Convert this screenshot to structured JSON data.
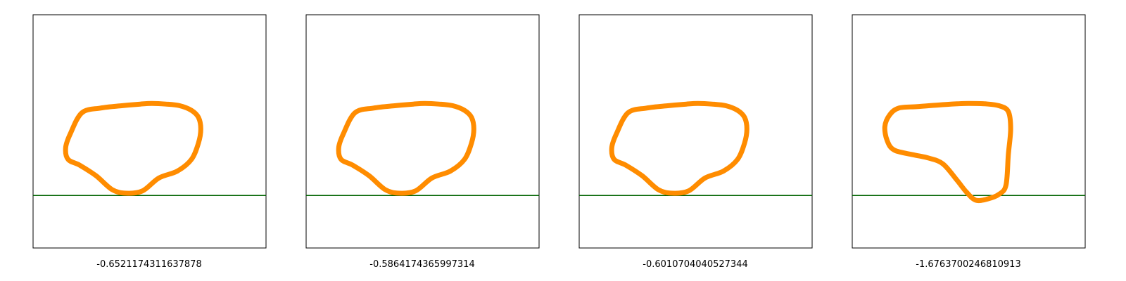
{
  "colors": {
    "shape": "#ff8c00",
    "ground_line": "#006400",
    "frame": "#000000",
    "background": "#ffffff"
  },
  "chart_data": [
    {
      "type": "line",
      "caption": "-0.6521174311637878",
      "grid": false,
      "xlim": [
        0,
        1
      ],
      "ylim": [
        0,
        1
      ],
      "ground_y": 0.225,
      "series": [
        {
          "x": [
            0.51,
            0.57,
            0.63,
            0.68,
            0.71,
            0.72,
            0.71,
            0.68,
            0.62,
            0.54,
            0.47,
            0.4,
            0.34,
            0.27,
            0.2,
            0.15,
            0.14,
            0.16,
            0.21,
            0.29,
            0.38,
            0.46,
            0.51
          ],
          "y": [
            0.62,
            0.617,
            0.61,
            0.59,
            0.56,
            0.51,
            0.45,
            0.38,
            0.33,
            0.3,
            0.245,
            0.235,
            0.25,
            0.31,
            0.355,
            0.38,
            0.43,
            0.49,
            0.58,
            0.6,
            0.61,
            0.617,
            0.62
          ]
        }
      ]
    },
    {
      "type": "line",
      "caption": "-0.5864174365997314",
      "grid": false,
      "xlim": [
        0,
        1
      ],
      "ylim": [
        0,
        1
      ],
      "ground_y": 0.225,
      "series": [
        {
          "x": [
            0.51,
            0.57,
            0.63,
            0.68,
            0.71,
            0.72,
            0.71,
            0.68,
            0.62,
            0.54,
            0.47,
            0.4,
            0.34,
            0.27,
            0.2,
            0.15,
            0.14,
            0.16,
            0.21,
            0.29,
            0.38,
            0.46,
            0.51
          ],
          "y": [
            0.62,
            0.617,
            0.61,
            0.59,
            0.56,
            0.51,
            0.45,
            0.38,
            0.33,
            0.3,
            0.245,
            0.235,
            0.25,
            0.31,
            0.355,
            0.38,
            0.43,
            0.49,
            0.58,
            0.6,
            0.61,
            0.617,
            0.62
          ]
        }
      ]
    },
    {
      "type": "line",
      "caption": "-0.6010704040527344",
      "grid": false,
      "xlim": [
        0,
        1
      ],
      "ylim": [
        0,
        1
      ],
      "ground_y": 0.225,
      "series": [
        {
          "x": [
            0.51,
            0.57,
            0.63,
            0.68,
            0.71,
            0.72,
            0.71,
            0.68,
            0.62,
            0.54,
            0.47,
            0.4,
            0.34,
            0.27,
            0.2,
            0.15,
            0.14,
            0.16,
            0.21,
            0.29,
            0.38,
            0.46,
            0.51
          ],
          "y": [
            0.62,
            0.617,
            0.61,
            0.59,
            0.56,
            0.51,
            0.45,
            0.38,
            0.33,
            0.3,
            0.245,
            0.235,
            0.25,
            0.31,
            0.355,
            0.38,
            0.43,
            0.49,
            0.58,
            0.6,
            0.61,
            0.617,
            0.62
          ]
        }
      ]
    },
    {
      "type": "line",
      "caption": "-1.6763700246810913",
      "grid": false,
      "xlim": [
        0,
        1
      ],
      "ylim": [
        0,
        1
      ],
      "ground_y": 0.225,
      "series": [
        {
          "x": [
            0.5,
            0.57,
            0.63,
            0.67,
            0.68,
            0.67,
            0.66,
            0.63,
            0.58,
            0.53,
            0.49,
            0.45,
            0.39,
            0.33,
            0.26,
            0.18,
            0.15,
            0.14,
            0.16,
            0.2,
            0.28,
            0.37,
            0.45,
            0.5
          ],
          "y": [
            0.62,
            0.618,
            0.61,
            0.585,
            0.51,
            0.4,
            0.27,
            0.23,
            0.21,
            0.205,
            0.24,
            0.29,
            0.36,
            0.385,
            0.4,
            0.42,
            0.46,
            0.52,
            0.57,
            0.6,
            0.606,
            0.613,
            0.618,
            0.62
          ]
        }
      ]
    }
  ]
}
